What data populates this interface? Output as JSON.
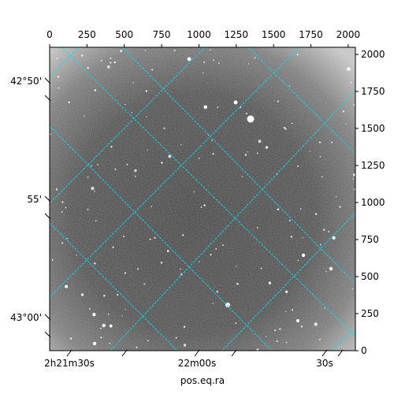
{
  "chart_data": {
    "type": "image",
    "title": "",
    "xlabel": "pos.eq.ra",
    "ylabel": "",
    "pixel_axes": {
      "top_ticks": [
        "0",
        "250",
        "500",
        "750",
        "1000",
        "1250",
        "1500",
        "1750",
        "2000"
      ],
      "right_ticks": [
        "0",
        "250",
        "500",
        "750",
        "1000",
        "1250",
        "1500",
        "1750",
        "2000"
      ],
      "xlim": [
        0,
        2048
      ],
      "ylim": [
        0,
        2048
      ]
    },
    "world_axes": {
      "bottom_ticks": [
        "2h21m30s",
        "22m00s",
        "30s"
      ],
      "left_ticks": [
        "42°50'",
        "55'",
        "43°00'"
      ]
    },
    "grid": true,
    "grid_color": "#00e5e5",
    "image_colormap": "gray"
  }
}
